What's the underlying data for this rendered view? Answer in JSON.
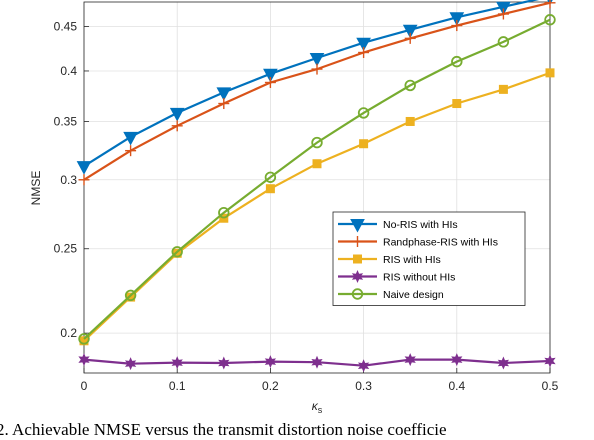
{
  "chart_data": {
    "type": "line",
    "xlabel": "κs",
    "ylabel": "NMSE",
    "xlim": [
      0,
      0.5
    ],
    "ylim": [
      0.18,
      0.48
    ],
    "y_scale": "log",
    "grid": true,
    "legend_position": "center-right",
    "x": [
      0,
      0.05,
      0.1,
      0.15,
      0.2,
      0.25,
      0.3,
      0.35,
      0.4,
      0.45,
      0.5
    ],
    "x_ticks": [
      "0",
      "0.1",
      "0.2",
      "0.3",
      "0.4",
      "0.5"
    ],
    "y_ticks": [
      "0.2",
      "0.25",
      "0.3",
      "0.35",
      "0.4",
      "0.45"
    ],
    "series": [
      {
        "name": "No-RIS with HIs",
        "color": "#0072BD",
        "marker": "triangle-down",
        "values": [
          0.311,
          0.336,
          0.358,
          0.378,
          0.397,
          0.414,
          0.431,
          0.446,
          0.461,
          0.474,
          0.487
        ]
      },
      {
        "name": "Randphase-RIS with HIs",
        "color": "#D95319",
        "marker": "plus",
        "values": [
          0.3,
          0.324,
          0.346,
          0.367,
          0.388,
          0.402,
          0.42,
          0.436,
          0.451,
          0.465,
          0.479
        ]
      },
      {
        "name": "RIS with HIs",
        "color": "#EDB120",
        "marker": "square",
        "values": [
          0.196,
          0.22,
          0.247,
          0.271,
          0.293,
          0.313,
          0.33,
          0.35,
          0.367,
          0.381,
          0.398
        ]
      },
      {
        "name": "RIS without HIs",
        "color": "#7E2F8E",
        "marker": "hexagram",
        "values": [
          0.1865,
          0.1845,
          0.185,
          0.1848,
          0.1855,
          0.1852,
          0.1835,
          0.1865,
          0.1865,
          0.1848,
          0.1858
        ]
      },
      {
        "name": "Naive design",
        "color": "#77AC30",
        "marker": "circle",
        "values": [
          0.197,
          0.221,
          0.248,
          0.275,
          0.302,
          0.331,
          0.358,
          0.385,
          0.41,
          0.432,
          0.458
        ]
      }
    ]
  },
  "caption": "2.  Achievable NMSE versus the transmit distortion noise coefficie"
}
